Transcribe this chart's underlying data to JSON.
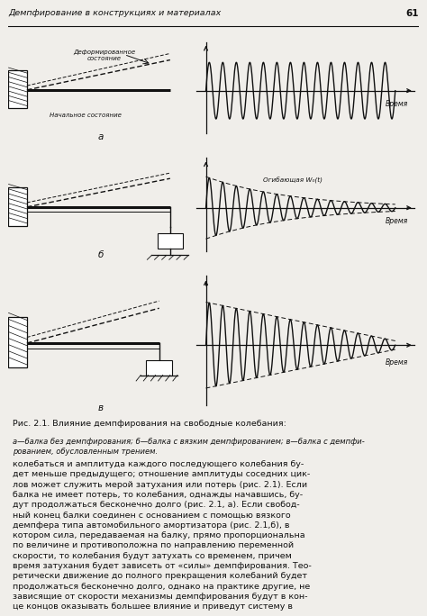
{
  "page_title": "Демпфирование в конструкциях и материалах",
  "page_number": "61",
  "fig_caption_main": "Рис. 2.1. Влияние демпфирования на свободные колебания:",
  "fig_caption_sub": "а—балка без демпфирования; б—балка с вязким демпфированием; в—балка с демпфи-\nрованием, обусловленным трением.",
  "body_text_lines": [
    "колебаться и амплитуда каждого последующего колебания бу-",
    "дет меньше предыдущего; отношение амплитуды соседних цик-",
    "лов может служить мерой затухания или потерь (рис. 2.1). Если",
    "балка не имеет потерь, то колебания, однажды начавшись, бу-",
    "дут продолжаться бесконечно долго (рис. 2.1, а). Если свобод-",
    "ный конец балки соединен с основанием с помощью вязкого",
    "демпфера типа автомобильного амортизатора (рис. 2.1,б), в",
    "котором сила, передаваемая на балку, прямо пропорциональна",
    "по величине и противоположна по направлению переменной",
    "скорости, то колебания будут затухать со временем, причем",
    "время затухания будет зависеть от «силы» демпфирования. Тео-",
    "ретически движение до полного прекращения колебаний будет",
    "продолжаться бесконечно долго, однако на практике другие, не",
    "зависящие от скорости механизмы демпфирования будут в кон-",
    "це концов оказывать большее влияние и приведут систему в"
  ],
  "subplot_labels": [
    "а",
    "б",
    "в"
  ],
  "label_deformed": "Деформированное\nсостояние",
  "label_initial": "Начальное состояние",
  "label_time": "Время",
  "label_envelope": "Огибающая W₀(t)",
  "bg_color": "#f0eeea",
  "line_color": "#111111",
  "text_color": "#111111",
  "osc_freq": 1.4,
  "decay_exp": 0.22,
  "decay_lin": 0.09
}
